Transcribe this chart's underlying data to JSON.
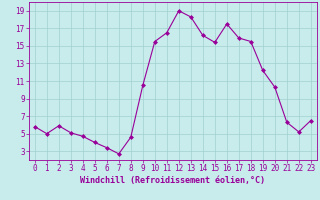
{
  "x": [
    0,
    1,
    2,
    3,
    4,
    5,
    6,
    7,
    8,
    9,
    10,
    11,
    12,
    13,
    14,
    15,
    16,
    17,
    18,
    19,
    20,
    21,
    22,
    23
  ],
  "y": [
    5.8,
    5.0,
    5.9,
    5.1,
    4.7,
    4.0,
    3.4,
    2.7,
    4.6,
    10.5,
    15.5,
    16.5,
    19.0,
    18.3,
    16.2,
    15.4,
    17.5,
    15.9,
    15.5,
    12.2,
    10.3,
    6.3,
    5.2,
    6.5
  ],
  "line_color": "#990099",
  "marker": "D",
  "markersize": 2.0,
  "linewidth": 0.8,
  "background_color": "#c8ecec",
  "grid_color": "#a0d0d0",
  "xlabel": "Windchill (Refroidissement éolien,°C)",
  "xlabel_fontsize": 6.0,
  "tick_fontsize": 5.5,
  "xlim": [
    -0.5,
    23.5
  ],
  "ylim": [
    2.0,
    20.0
  ],
  "yticks": [
    3,
    5,
    7,
    9,
    11,
    13,
    15,
    17,
    19
  ],
  "xticks": [
    0,
    1,
    2,
    3,
    4,
    5,
    6,
    7,
    8,
    9,
    10,
    11,
    12,
    13,
    14,
    15,
    16,
    17,
    18,
    19,
    20,
    21,
    22,
    23
  ]
}
